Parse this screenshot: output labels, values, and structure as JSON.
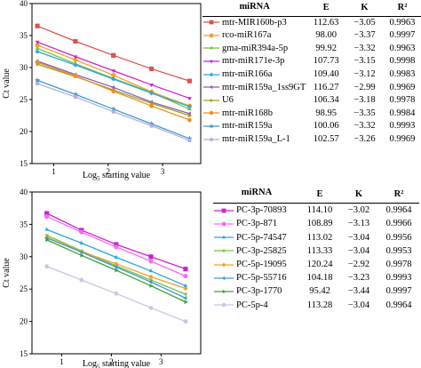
{
  "chart_data": [
    {
      "type": "line",
      "ylabel": "Ct value",
      "xlabel": "Log5 starting value",
      "xlabel_base": "Log",
      "xlabel_sub": "5",
      "xlabel_rest": " starting value",
      "xlim": [
        0.6,
        3.7
      ],
      "ylim": [
        15,
        40
      ],
      "x_ticks": [
        1,
        2,
        3
      ],
      "y_ticks": [
        15,
        20,
        25,
        30,
        35,
        40
      ],
      "x": [
        0.699,
        1.398,
        2.097,
        2.796,
        3.495
      ],
      "grid": false,
      "legend_position": "right",
      "legend_headers": [
        "miRNA",
        "E",
        "K",
        "R²"
      ],
      "series": [
        {
          "name": "mtr-MIR160b-p3",
          "E": "112.63",
          "K": "−3.05",
          "R2": "0.9963",
          "color": "#d9534f",
          "marker": "square",
          "values": [
            36.5,
            34.1,
            31.9,
            29.8,
            27.9
          ]
        },
        {
          "name": "rco-miR167a",
          "E": "98.00",
          "K": "−3.37",
          "R2": "0.9997",
          "color": "#f0a030",
          "marker": "circle",
          "values": [
            33.5,
            31.2,
            28.8,
            26.2,
            24.0
          ]
        },
        {
          "name": "gma-miR394a-5p",
          "E": "99.92",
          "K": "−3.32",
          "R2": "0.9963",
          "color": "#7ac143",
          "marker": "triangle",
          "values": [
            33.0,
            30.6,
            28.3,
            26.1,
            23.5
          ]
        },
        {
          "name": "mtr-miR171e-3p",
          "E": "107.73",
          "K": "−3.15",
          "R2": "0.9998",
          "color": "#d020d0",
          "marker": "triangle-down",
          "values": [
            34.0,
            31.7,
            29.5,
            27.3,
            25.2
          ]
        },
        {
          "name": "mtr-miR166a",
          "E": "109.40",
          "K": "−3.12",
          "R2": "0.9983",
          "color": "#2aa7df",
          "marker": "diamond",
          "values": [
            32.5,
            30.4,
            28.2,
            26.0,
            23.9
          ]
        },
        {
          "name": "mtr-miR159a_1ss9GT",
          "E": "116.27",
          "K": "−2.99",
          "R2": "0.9969",
          "color": "#8a5fb0",
          "marker": "triangle-left",
          "values": [
            31.0,
            28.9,
            26.9,
            24.6,
            22.8
          ]
        },
        {
          "name": "U6",
          "E": "106.34",
          "K": "−3.18",
          "R2": "0.9978",
          "color": "#a0a020",
          "marker": "triangle-right",
          "values": [
            30.5,
            28.6,
            26.5,
            24.4,
            22.5
          ]
        },
        {
          "name": "mtr-miR168b",
          "E": "98.95",
          "K": "−3.35",
          "R2": "0.9984",
          "color": "#e8902a",
          "marker": "hexagon",
          "values": [
            30.8,
            28.7,
            26.3,
            24.0,
            21.8
          ]
        },
        {
          "name": "mtr-miR159a",
          "E": "100.06",
          "K": "−3.32",
          "R2": "0.9993",
          "color": "#3b99d4",
          "marker": "star",
          "values": [
            28.0,
            25.8,
            23.5,
            21.2,
            18.9
          ]
        },
        {
          "name": "mtr-miR159a_L-1",
          "E": "102.57",
          "K": "−3.26",
          "R2": "0.9969",
          "color": "#b8b0d8",
          "marker": "pentagon",
          "values": [
            27.5,
            25.4,
            23.1,
            20.9,
            18.6
          ]
        }
      ]
    },
    {
      "type": "line",
      "ylabel": "Ct value",
      "xlabel": "Log5 starting value",
      "xlabel_base": "Log",
      "xlabel_sub": "5",
      "xlabel_rest": " starting value",
      "xlim": [
        0.4,
        3.8
      ],
      "ylim": [
        15,
        40
      ],
      "x_ticks": [
        1,
        2,
        3
      ],
      "y_ticks": [
        15,
        20,
        25,
        30,
        35,
        40
      ],
      "x": [
        0.699,
        1.398,
        2.097,
        2.796,
        3.495
      ],
      "grid": false,
      "legend_position": "right",
      "legend_headers": [
        "miRNA",
        "E",
        "K",
        "R²"
      ],
      "series": [
        {
          "name": "PC-3p-70893",
          "E": "114.10",
          "K": "−3.02",
          "R2": "0.9964",
          "color": "#d020d0",
          "marker": "square",
          "values": [
            36.7,
            34.1,
            31.9,
            30.0,
            28.1
          ]
        },
        {
          "name": "PC-3p-871",
          "E": "108.89",
          "K": "−3.13",
          "R2": "0.9966",
          "color": "#f070f0",
          "marker": "circle",
          "values": [
            36.2,
            33.8,
            31.5,
            29.3,
            27.0
          ]
        },
        {
          "name": "PC-5p-74547",
          "E": "113.02",
          "K": "−3.04",
          "R2": "0.9956",
          "color": "#2aa7df",
          "marker": "triangle",
          "values": [
            34.2,
            32.1,
            29.9,
            27.8,
            25.5
          ]
        },
        {
          "name": "PC-3p-25825",
          "E": "113.33",
          "K": "−3.04",
          "R2": "0.9953",
          "color": "#7ac143",
          "marker": "triangle-down",
          "values": [
            33.3,
            30.9,
            28.6,
            26.4,
            24.2
          ]
        },
        {
          "name": "PC-5p-19095",
          "E": "120.24",
          "K": "−2.92",
          "R2": "0.9978",
          "color": "#f0a030",
          "marker": "diamond",
          "values": [
            33.0,
            30.8,
            28.9,
            26.9,
            25.1
          ]
        },
        {
          "name": "PC-5p-55716",
          "E": "104.18",
          "K": "−3.23",
          "R2": "0.9993",
          "color": "#3b99d4",
          "marker": "triangle-left",
          "values": [
            32.9,
            30.7,
            28.4,
            26.1,
            23.6
          ]
        },
        {
          "name": "PC-3p-1770",
          "E": "95.42",
          "K": "−3.44",
          "R2": "0.9997",
          "color": "#3aa040",
          "marker": "triangle-right",
          "values": [
            32.6,
            30.2,
            27.9,
            25.5,
            23.0
          ]
        },
        {
          "name": "PC-5p-4",
          "E": "113.28",
          "K": "−3.04",
          "R2": "0.9964",
          "color": "#c8c8e0",
          "marker": "hexagon",
          "values": [
            28.5,
            26.4,
            24.3,
            22.1,
            20.0
          ]
        }
      ]
    }
  ]
}
